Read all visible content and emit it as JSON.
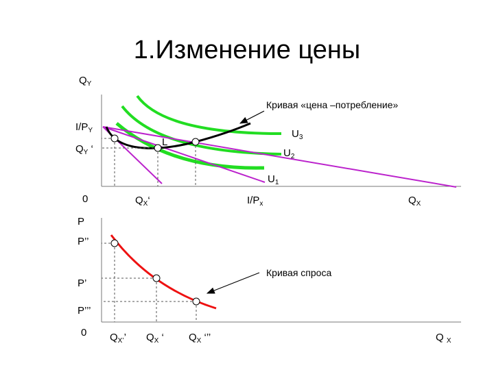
{
  "title": "1.Изменение цены",
  "top_chart": {
    "labels": [
      {
        "text": "Q",
        "sub": "Y"
      },
      {
        "text": "I/P",
        "sub": "Y"
      },
      {
        "text": "Q",
        "sub": "Y",
        "suffix": " ‘"
      },
      {
        "text": "0"
      },
      {
        "text": "Q",
        "sub": "X",
        "suffix": "‘"
      },
      {
        "text": "I/P",
        "sub": "x"
      },
      {
        "text": "Q",
        "sub": "X"
      },
      {
        "text": "L"
      },
      {
        "text": "U",
        "sub": "3"
      },
      {
        "text": "U",
        "sub": "2"
      },
      {
        "text": "U",
        "sub": "1"
      }
    ],
    "annotation": "Кривая «цена –потребление»"
  },
  "bottom_chart": {
    "labels": [
      {
        "text": "P"
      },
      {
        "text": "P’’"
      },
      {
        "text": "P’"
      },
      {
        "text": "P’’’"
      },
      {
        "text": "0"
      },
      {
        "text": "Q",
        "sub": "X’",
        "suffix": "’"
      },
      {
        "text": "Q",
        "sub": "X",
        "suffix": " ‘"
      },
      {
        "text": "Q",
        "sub": "X",
        "suffix": " ‘’’"
      },
      {
        "text": "Q ",
        "sub": "X"
      }
    ],
    "annotation": "Кривая спроса"
  }
}
